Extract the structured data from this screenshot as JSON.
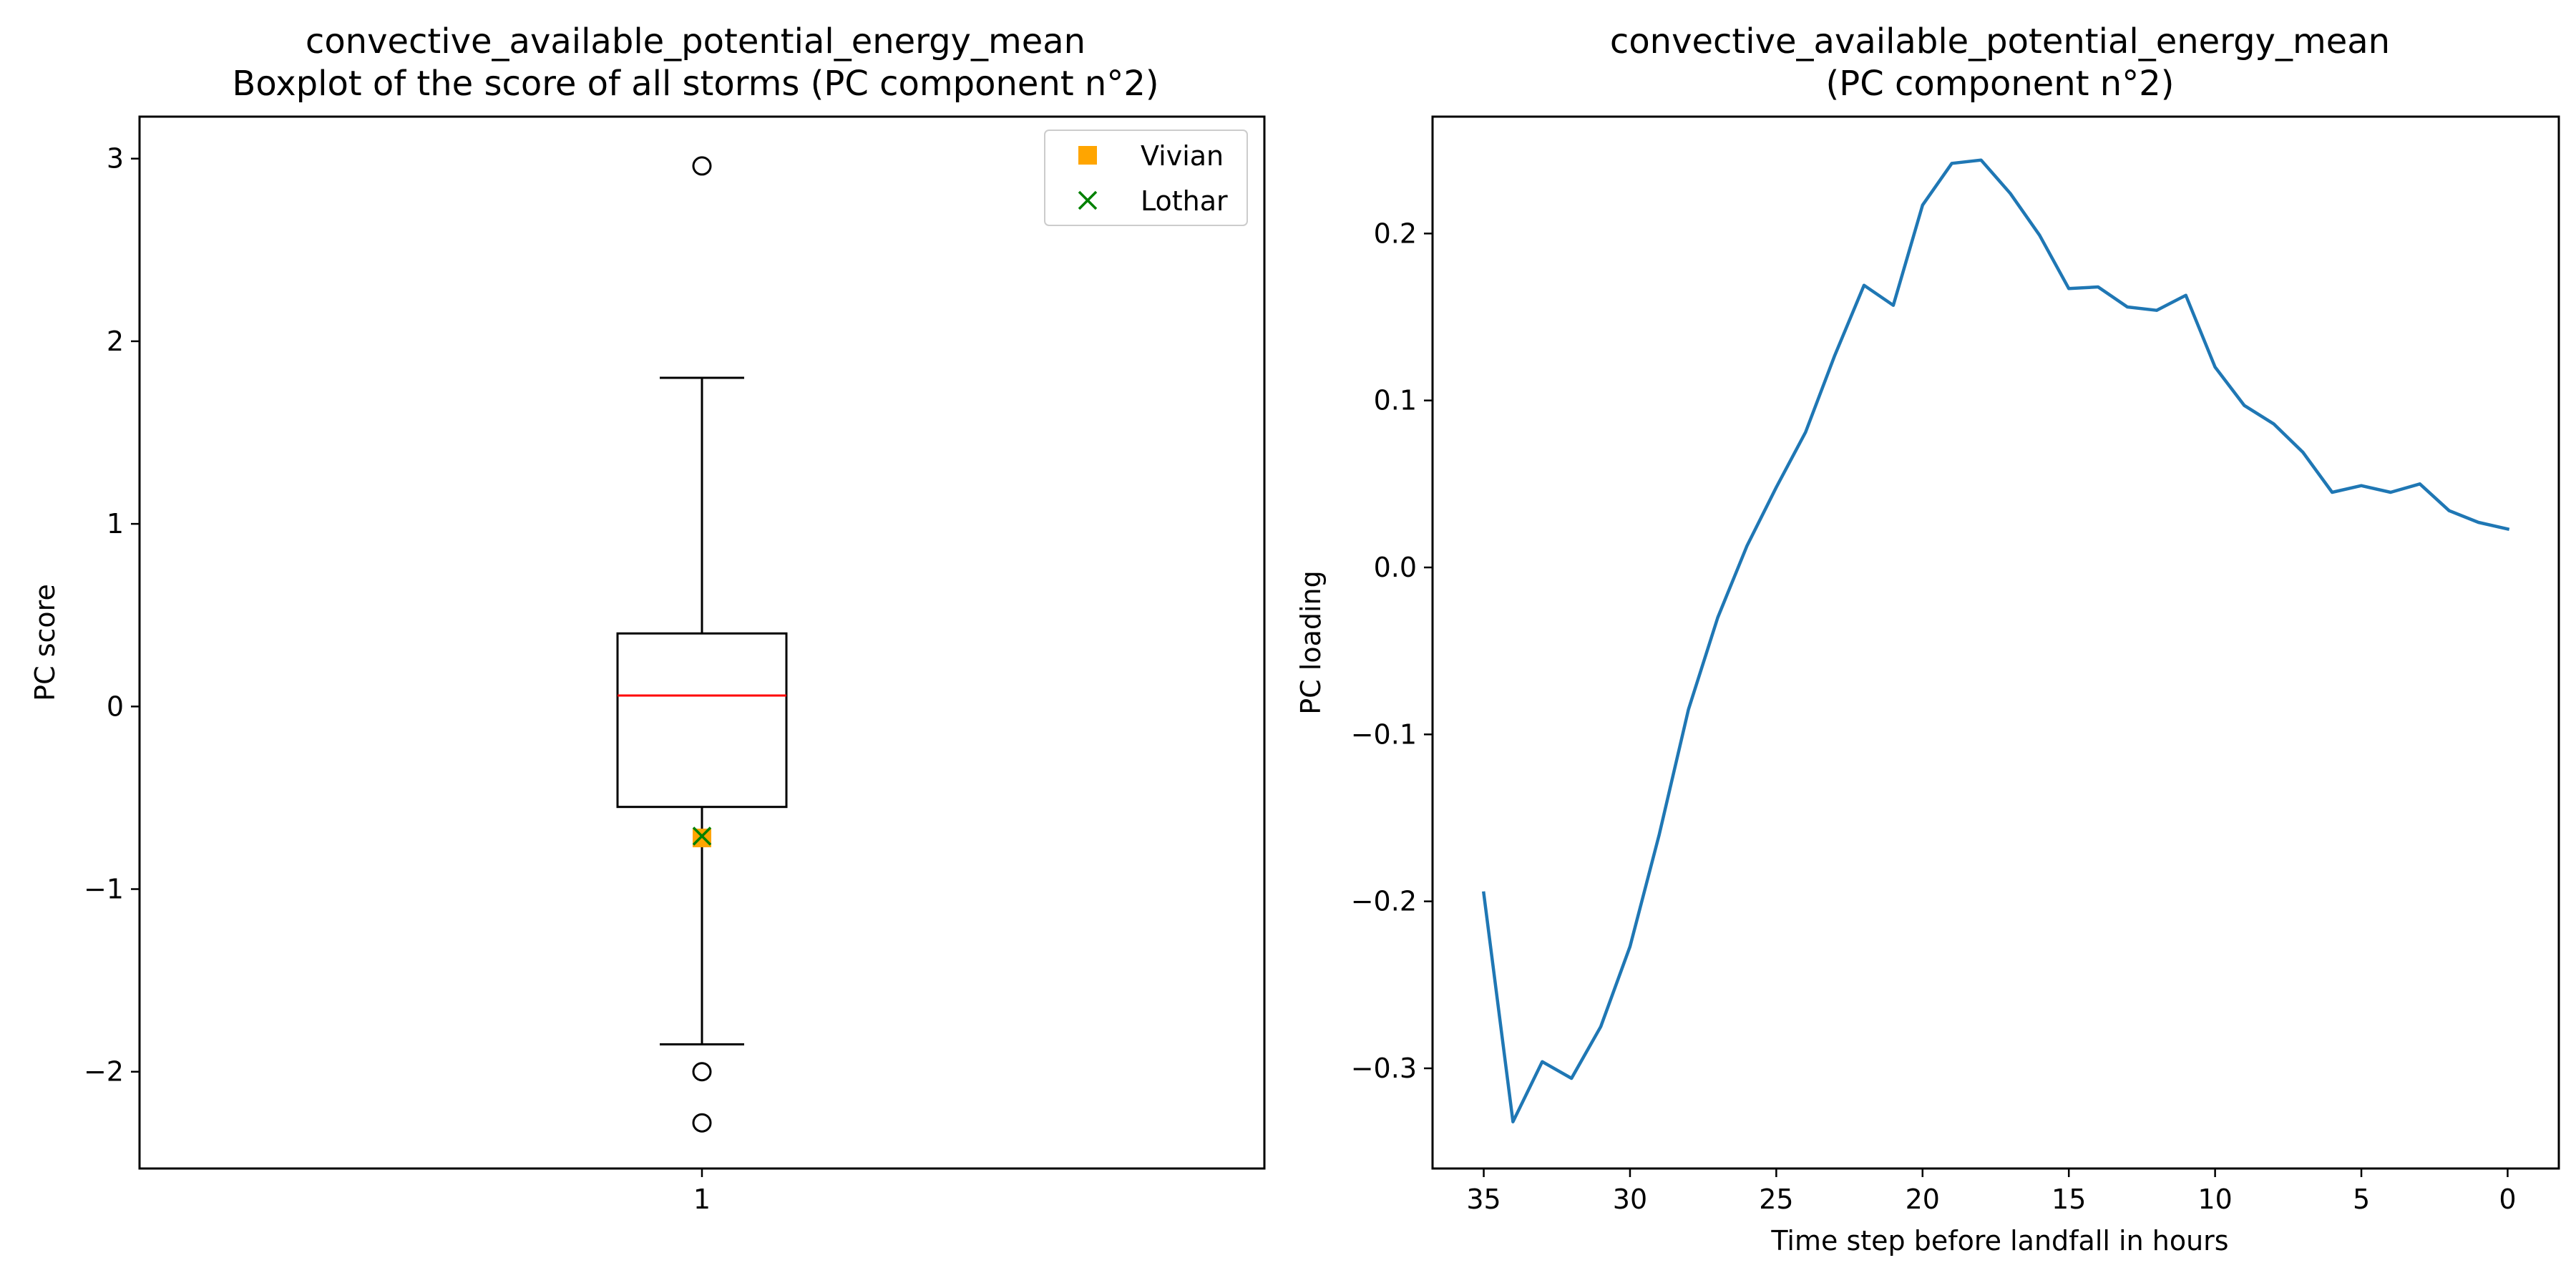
{
  "chart_data": [
    {
      "type": "box",
      "title": [
        "convective_available_potential_energy_mean",
        "Boxplot of the score of all storms (PC component n°2)"
      ],
      "xlabel": "",
      "ylabel": "PC score",
      "categories": [
        "1"
      ],
      "ylim": [
        -2.53,
        3.23
      ],
      "yticks": [
        -2,
        -1,
        0,
        1,
        2,
        3
      ],
      "box": {
        "whisker_low": -1.85,
        "q1": -0.55,
        "median": 0.06,
        "q3": 0.4,
        "whisker_high": 1.8,
        "outliers": [
          2.96,
          -2.0,
          -2.28
        ]
      },
      "markers": [
        {
          "name": "Vivian",
          "value": -0.72,
          "color": "#ffa500",
          "shape": "square"
        },
        {
          "name": "Lothar",
          "value": -0.71,
          "color": "#008000",
          "shape": "x"
        }
      ],
      "legend": "upper-right",
      "colors": {
        "box": "#000000",
        "median": "#ff0000"
      }
    },
    {
      "type": "line",
      "title": [
        "convective_available_potential_energy_mean",
        "(PC component n°2)"
      ],
      "xlabel": "Time step before landfall in hours",
      "ylabel": "PC loading",
      "xlim": [
        36.75,
        -1.75
      ],
      "ylim": [
        -0.36,
        0.27
      ],
      "xticks": [
        35,
        30,
        25,
        20,
        15,
        10,
        5,
        0
      ],
      "yticks": [
        -0.3,
        -0.2,
        -0.1,
        0.0,
        0.1,
        0.2
      ],
      "series": [
        {
          "color": "#1f77b4",
          "x": [
            35,
            34,
            33,
            32,
            31,
            30,
            29,
            28,
            27,
            26,
            25,
            24,
            23,
            22,
            21,
            20,
            19,
            18,
            17,
            16,
            15,
            14,
            13,
            12,
            11,
            10,
            9,
            8,
            7,
            6,
            5,
            4,
            3,
            2,
            1,
            0
          ],
          "y": [
            -0.195,
            -0.332,
            -0.296,
            -0.306,
            -0.275,
            -0.227,
            -0.16,
            -0.085,
            -0.03,
            0.013,
            0.048,
            0.081,
            0.127,
            0.169,
            0.157,
            0.217,
            0.242,
            0.244,
            0.224,
            0.199,
            0.167,
            0.168,
            0.156,
            0.154,
            0.163,
            0.12,
            0.097,
            0.086,
            0.069,
            0.045,
            0.049,
            0.045,
            0.05,
            0.034,
            0.027,
            0.023
          ]
        }
      ]
    }
  ]
}
